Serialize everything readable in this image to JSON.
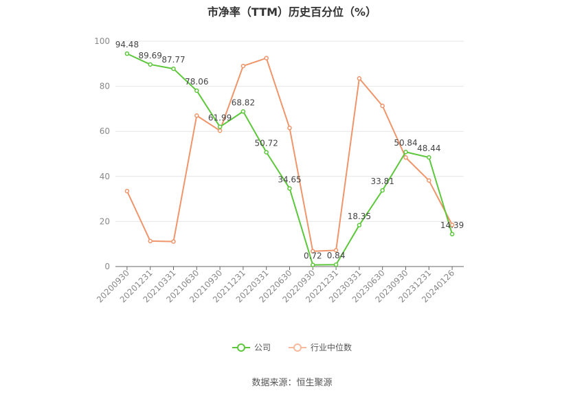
{
  "chart_data": {
    "type": "line",
    "title": "市净率（TTM）历史百分位（%）",
    "categories": [
      "20200930",
      "20201231",
      "20210331",
      "20210630",
      "20210930",
      "20211231",
      "20220331",
      "20220630",
      "20220930",
      "20221231",
      "20230331",
      "20230630",
      "20230930",
      "20231231",
      "20240126"
    ],
    "ylim": [
      0,
      100
    ],
    "yticks": [
      0,
      20,
      40,
      60,
      80,
      100
    ],
    "grid": true,
    "legend_position": "bottom",
    "series": [
      {
        "name": "公司",
        "color": "#5cc73a",
        "values": [
          94.48,
          89.69,
          87.77,
          78.06,
          61.99,
          68.82,
          50.72,
          34.65,
          0.72,
          0.84,
          18.35,
          33.81,
          50.84,
          48.44,
          14.39
        ],
        "labels": [
          "94.48",
          "89.69",
          "87.77",
          "78.06",
          "61.99",
          "68.82",
          "50.72",
          "34.65",
          "0.72",
          "0.84",
          "18.35",
          "33.81",
          "50.84",
          "48.44",
          "14.39"
        ]
      },
      {
        "name": "行业中位数",
        "color": "#f0946a",
        "values": [
          33.5,
          11.3,
          11.1,
          67.0,
          60.3,
          89.0,
          92.5,
          61.5,
          6.8,
          7.2,
          83.5,
          71.3,
          48.4,
          38.2,
          18.5
        ]
      }
    ],
    "source": "数据来源：恒生聚源"
  }
}
